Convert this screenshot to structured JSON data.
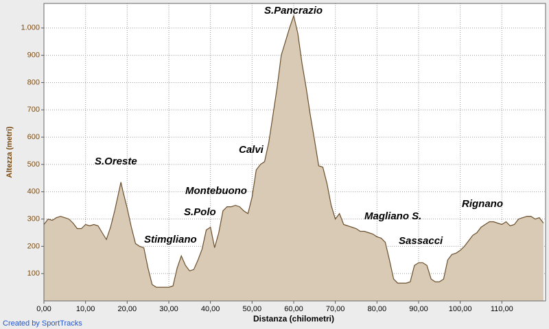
{
  "chart_data": {
    "type": "area",
    "xlabel": "Distanza (chilometri)",
    "ylabel": "Altezza (metri)",
    "annotations": [
      "S.Pancrazio",
      "S.Oreste",
      "Stimgliano",
      "Montebuono",
      "S.Polo",
      "Calvi",
      "Magliano S.",
      "Sassacci",
      "Rignano"
    ],
    "x": [
      0,
      1,
      2,
      3,
      4,
      5,
      6,
      7,
      8,
      9,
      10,
      11,
      12,
      13,
      14,
      15,
      16,
      17,
      18,
      18.5,
      19,
      20,
      21,
      22,
      23,
      24,
      25,
      26,
      27,
      28,
      29,
      30,
      31,
      32,
      33,
      34,
      35,
      36,
      37,
      38,
      39,
      40,
      41,
      42,
      43,
      44,
      45,
      46,
      47,
      48,
      49,
      50,
      51,
      52,
      53,
      54,
      55,
      56,
      57,
      58,
      59,
      60,
      61,
      62,
      63,
      64,
      65,
      66,
      67,
      68,
      69,
      70,
      71,
      72,
      73,
      74,
      75,
      76,
      77,
      78,
      79,
      80,
      81,
      82,
      83,
      84,
      85,
      86,
      87,
      88,
      89,
      90,
      91,
      92,
      93,
      94,
      95,
      96,
      97,
      98,
      99,
      100,
      101,
      102,
      103,
      104,
      105,
      106,
      107,
      108,
      109,
      110,
      111,
      112,
      113,
      114,
      115,
      116,
      117,
      118,
      119,
      120
    ],
    "values": [
      280,
      300,
      295,
      305,
      310,
      305,
      300,
      285,
      265,
      265,
      280,
      275,
      280,
      275,
      250,
      225,
      270,
      330,
      400,
      435,
      400,
      340,
      270,
      210,
      200,
      195,
      120,
      60,
      50,
      50,
      50,
      50,
      55,
      120,
      165,
      130,
      110,
      115,
      150,
      190,
      260,
      270,
      195,
      250,
      330,
      345,
      345,
      350,
      345,
      330,
      320,
      380,
      480,
      500,
      510,
      580,
      680,
      780,
      900,
      950,
      1000,
      1045,
      980,
      870,
      780,
      680,
      590,
      495,
      490,
      430,
      350,
      300,
      320,
      280,
      275,
      270,
      265,
      255,
      255,
      250,
      245,
      235,
      230,
      215,
      150,
      80,
      65,
      65,
      65,
      70,
      130,
      140,
      140,
      130,
      80,
      70,
      70,
      80,
      150,
      170,
      175,
      185,
      200,
      220,
      240,
      250,
      270,
      280,
      290,
      290,
      285,
      280,
      290,
      275,
      280,
      300,
      305,
      310,
      310,
      300,
      305,
      285
    ],
    "color": "#d8cab4",
    "line_color": "#6a4e2c",
    "xlim": [
      0,
      120.5
    ],
    "ylim": [
      0,
      1090
    ],
    "xticks": [
      {
        "value": 0,
        "label": "0,00"
      },
      {
        "value": 10,
        "label": "10,00"
      },
      {
        "value": 20,
        "label": "20,00"
      },
      {
        "value": 30,
        "label": "30,00"
      },
      {
        "value": 40,
        "label": "40,00"
      },
      {
        "value": 50,
        "label": "50,00"
      },
      {
        "value": 60,
        "label": "60,00"
      },
      {
        "value": 70,
        "label": "70,00"
      },
      {
        "value": 80,
        "label": "80,00"
      },
      {
        "value": 90,
        "label": "90,00"
      },
      {
        "value": 100,
        "label": "100,00"
      },
      {
        "value": 110,
        "label": "110,00"
      }
    ],
    "yticks": [
      100,
      200,
      300,
      400,
      500,
      600,
      700,
      800,
      900,
      {
        "value": 1000,
        "label": "1.000"
      }
    ],
    "grid": true
  },
  "footer": "Created by SportTracks"
}
